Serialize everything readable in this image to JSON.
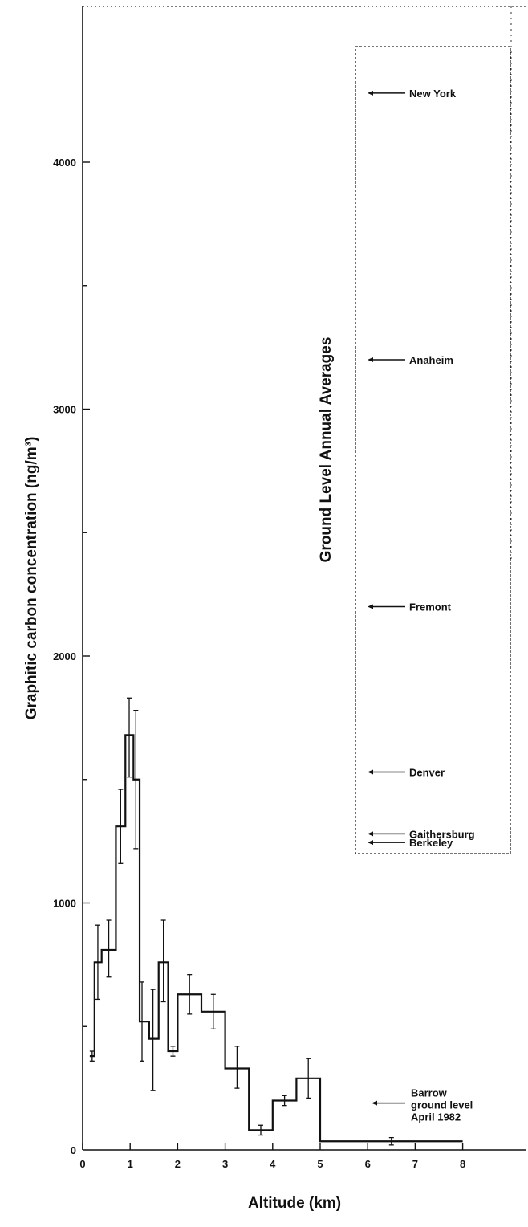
{
  "chart_data": {
    "type": "line",
    "xlabel": "Altitude (km)",
    "ylabel": "Graphitic carbon concentration (ng/m³)",
    "xlim": [
      0,
      9
    ],
    "ylim": [
      0,
      4500
    ],
    "x_ticks": [
      0,
      1,
      2,
      3,
      4,
      5,
      6,
      7,
      8
    ],
    "y_ticks": [
      0,
      1000,
      2000,
      3000,
      4000
    ],
    "y_tick_labels": [
      "0",
      "1000",
      "2000",
      "3000",
      "4000"
    ],
    "series": [
      {
        "style": "step",
        "bins": [
          {
            "x0": 0.15,
            "x1": 0.25,
            "y": 380
          },
          {
            "x0": 0.25,
            "x1": 0.4,
            "y": 760
          },
          {
            "x0": 0.4,
            "x1": 0.7,
            "y": 810
          },
          {
            "x0": 0.7,
            "x1": 0.9,
            "y": 1310
          },
          {
            "x0": 0.9,
            "x1": 1.07,
            "y": 1680
          },
          {
            "x0": 1.07,
            "x1": 1.2,
            "y": 1500
          },
          {
            "x0": 1.2,
            "x1": 1.4,
            "y": 520
          },
          {
            "x0": 1.4,
            "x1": 1.6,
            "y": 450
          },
          {
            "x0": 1.6,
            "x1": 1.8,
            "y": 760
          },
          {
            "x0": 1.8,
            "x1": 2.0,
            "y": 400
          },
          {
            "x0": 2.0,
            "x1": 2.5,
            "y": 630
          },
          {
            "x0": 2.5,
            "x1": 3.0,
            "y": 560
          },
          {
            "x0": 3.0,
            "x1": 3.5,
            "y": 330
          },
          {
            "x0": 3.5,
            "x1": 4.0,
            "y": 80
          },
          {
            "x0": 4.0,
            "x1": 4.5,
            "y": 200
          },
          {
            "x0": 4.5,
            "x1": 5.0,
            "y": 290
          },
          {
            "x0": 5.0,
            "x1": 8.0,
            "y": 35
          }
        ]
      }
    ],
    "error_bars": [
      {
        "x": 0.2,
        "low": 360,
        "high": 400
      },
      {
        "x": 0.32,
        "low": 610,
        "high": 910
      },
      {
        "x": 0.55,
        "low": 700,
        "high": 930
      },
      {
        "x": 0.8,
        "low": 1160,
        "high": 1460
      },
      {
        "x": 0.98,
        "low": 1510,
        "high": 1830
      },
      {
        "x": 1.12,
        "low": 1220,
        "high": 1780
      },
      {
        "x": 1.25,
        "low": 360,
        "high": 680
      },
      {
        "x": 1.48,
        "low": 240,
        "high": 650
      },
      {
        "x": 1.7,
        "low": 600,
        "high": 930
      },
      {
        "x": 1.9,
        "low": 380,
        "high": 420
      },
      {
        "x": 2.25,
        "low": 550,
        "high": 710
      },
      {
        "x": 2.75,
        "low": 490,
        "high": 630
      },
      {
        "x": 3.25,
        "low": 250,
        "high": 420
      },
      {
        "x": 3.75,
        "low": 60,
        "high": 100
      },
      {
        "x": 4.25,
        "low": 180,
        "high": 220
      },
      {
        "x": 4.75,
        "low": 210,
        "high": 370
      },
      {
        "x": 6.5,
        "low": 20,
        "high": 50
      }
    ],
    "inset": {
      "title": "Ground Level Annual Averages",
      "markers": [
        {
          "label": "New York",
          "y": 4280
        },
        {
          "label": "Anaheim",
          "y": 3200
        },
        {
          "label": "Fremont",
          "y": 2200
        },
        {
          "label": "Denver",
          "y": 1530
        },
        {
          "label": "Gaithersburg",
          "y": 1280
        },
        {
          "label": "Berkeley",
          "y": 1245
        }
      ]
    },
    "annotation": {
      "lines": [
        "Barrow",
        "ground level",
        "April 1982"
      ],
      "y": 190
    },
    "grid": false,
    "legend": "none"
  }
}
